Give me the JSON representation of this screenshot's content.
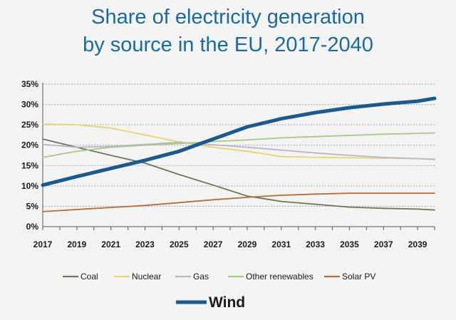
{
  "chart_data": {
    "type": "line",
    "title_lines": [
      "Share of electricity generation",
      "by source in the EU, 2017-2040"
    ],
    "x": [
      2017,
      2019,
      2021,
      2023,
      2025,
      2027,
      2029,
      2031,
      2033,
      2035,
      2037,
      2039,
      2040
    ],
    "x_ticks": [
      "2017",
      "2019",
      "2021",
      "2023",
      "2025",
      "2027",
      "2029",
      "2031",
      "2033",
      "2035",
      "2037",
      "2039"
    ],
    "y_ticks": [
      "0%",
      "5%",
      "10%",
      "15%",
      "20%",
      "25%",
      "30%",
      "35%"
    ],
    "ylim": [
      0,
      35
    ],
    "xlim": [
      2017,
      2040
    ],
    "series": [
      {
        "name": "Coal",
        "color": "#6e7752",
        "width": "thin",
        "values": [
          21.5,
          19.5,
          17.5,
          15.6,
          12.8,
          10.2,
          7.5,
          6.2,
          5.5,
          4.8,
          4.5,
          4.3,
          4.1
        ]
      },
      {
        "name": "Nuclear",
        "color": "#ead26f",
        "width": "thin",
        "values": [
          25.2,
          25.0,
          24.2,
          22.5,
          20.8,
          19.5,
          18.5,
          17.2,
          17.0,
          16.9,
          16.8,
          16.7,
          16.6
        ]
      },
      {
        "name": "Gas",
        "color": "#b9b3cc",
        "width": "thin",
        "values": [
          20.2,
          19.5,
          19.7,
          20.2,
          20.7,
          20.1,
          19.5,
          18.8,
          18.1,
          17.5,
          17.0,
          16.7,
          16.5
        ]
      },
      {
        "name": "Other renewables",
        "color": "#a8c97f",
        "width": "thin",
        "values": [
          17.0,
          18.5,
          19.5,
          20.0,
          20.4,
          20.9,
          21.3,
          21.8,
          22.1,
          22.4,
          22.7,
          22.9,
          23.0
        ]
      },
      {
        "name": "Solar PV",
        "color": "#b96a38",
        "width": "thin",
        "values": [
          3.7,
          4.2,
          4.7,
          5.2,
          5.9,
          6.6,
          7.2,
          7.7,
          8.0,
          8.2,
          8.2,
          8.2,
          8.2
        ]
      },
      {
        "name": "Wind",
        "color": "#1c5a8e",
        "width": "thick",
        "values": [
          10.2,
          12.3,
          14.3,
          16.3,
          18.5,
          21.5,
          24.5,
          26.5,
          28.0,
          29.2,
          30.1,
          30.8,
          31.5
        ]
      }
    ],
    "legend": {
      "placement": "bottom",
      "items": [
        "Coal",
        "Nuclear",
        "Gas",
        "Other renewables",
        "Solar PV"
      ],
      "big_item": "Wind"
    },
    "grid": "horizontal-dotted"
  }
}
